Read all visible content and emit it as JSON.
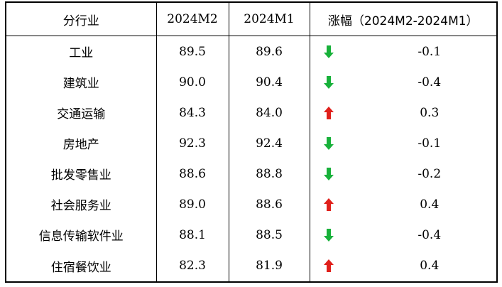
{
  "table": {
    "headers": [
      "分行业",
      "2024M2",
      "2024M1",
      "涨幅（2024M2-2024M1）"
    ],
    "colors": {
      "up": "#e0201b",
      "down": "#18b13a"
    },
    "rows": [
      {
        "industry": "工业",
        "m2": "89.5",
        "m1": "89.6",
        "direction": "down",
        "arrow_icon": "down-arrow-icon",
        "change": "-0.1"
      },
      {
        "industry": "建筑业",
        "m2": "90.0",
        "m1": "90.4",
        "direction": "down",
        "arrow_icon": "down-arrow-icon",
        "change": "-0.4"
      },
      {
        "industry": "交通运输",
        "m2": "84.3",
        "m1": "84.0",
        "direction": "up",
        "arrow_icon": "up-arrow-icon",
        "change": "0.3"
      },
      {
        "industry": "房地产",
        "m2": "92.3",
        "m1": "92.4",
        "direction": "down",
        "arrow_icon": "down-arrow-icon",
        "change": "-0.1"
      },
      {
        "industry": "批发零售业",
        "m2": "88.6",
        "m1": "88.8",
        "direction": "down",
        "arrow_icon": "down-arrow-icon",
        "change": "-0.2"
      },
      {
        "industry": "社会服务业",
        "m2": "89.0",
        "m1": "88.6",
        "direction": "up",
        "arrow_icon": "up-arrow-icon",
        "change": "0.4"
      },
      {
        "industry": "信息传输软件业",
        "m2": "88.1",
        "m1": "88.5",
        "direction": "down",
        "arrow_icon": "down-arrow-icon",
        "change": "-0.4"
      },
      {
        "industry": "住宿餐饮业",
        "m2": "82.3",
        "m1": "81.9",
        "direction": "up",
        "arrow_icon": "up-arrow-icon",
        "change": "0.4"
      }
    ]
  }
}
